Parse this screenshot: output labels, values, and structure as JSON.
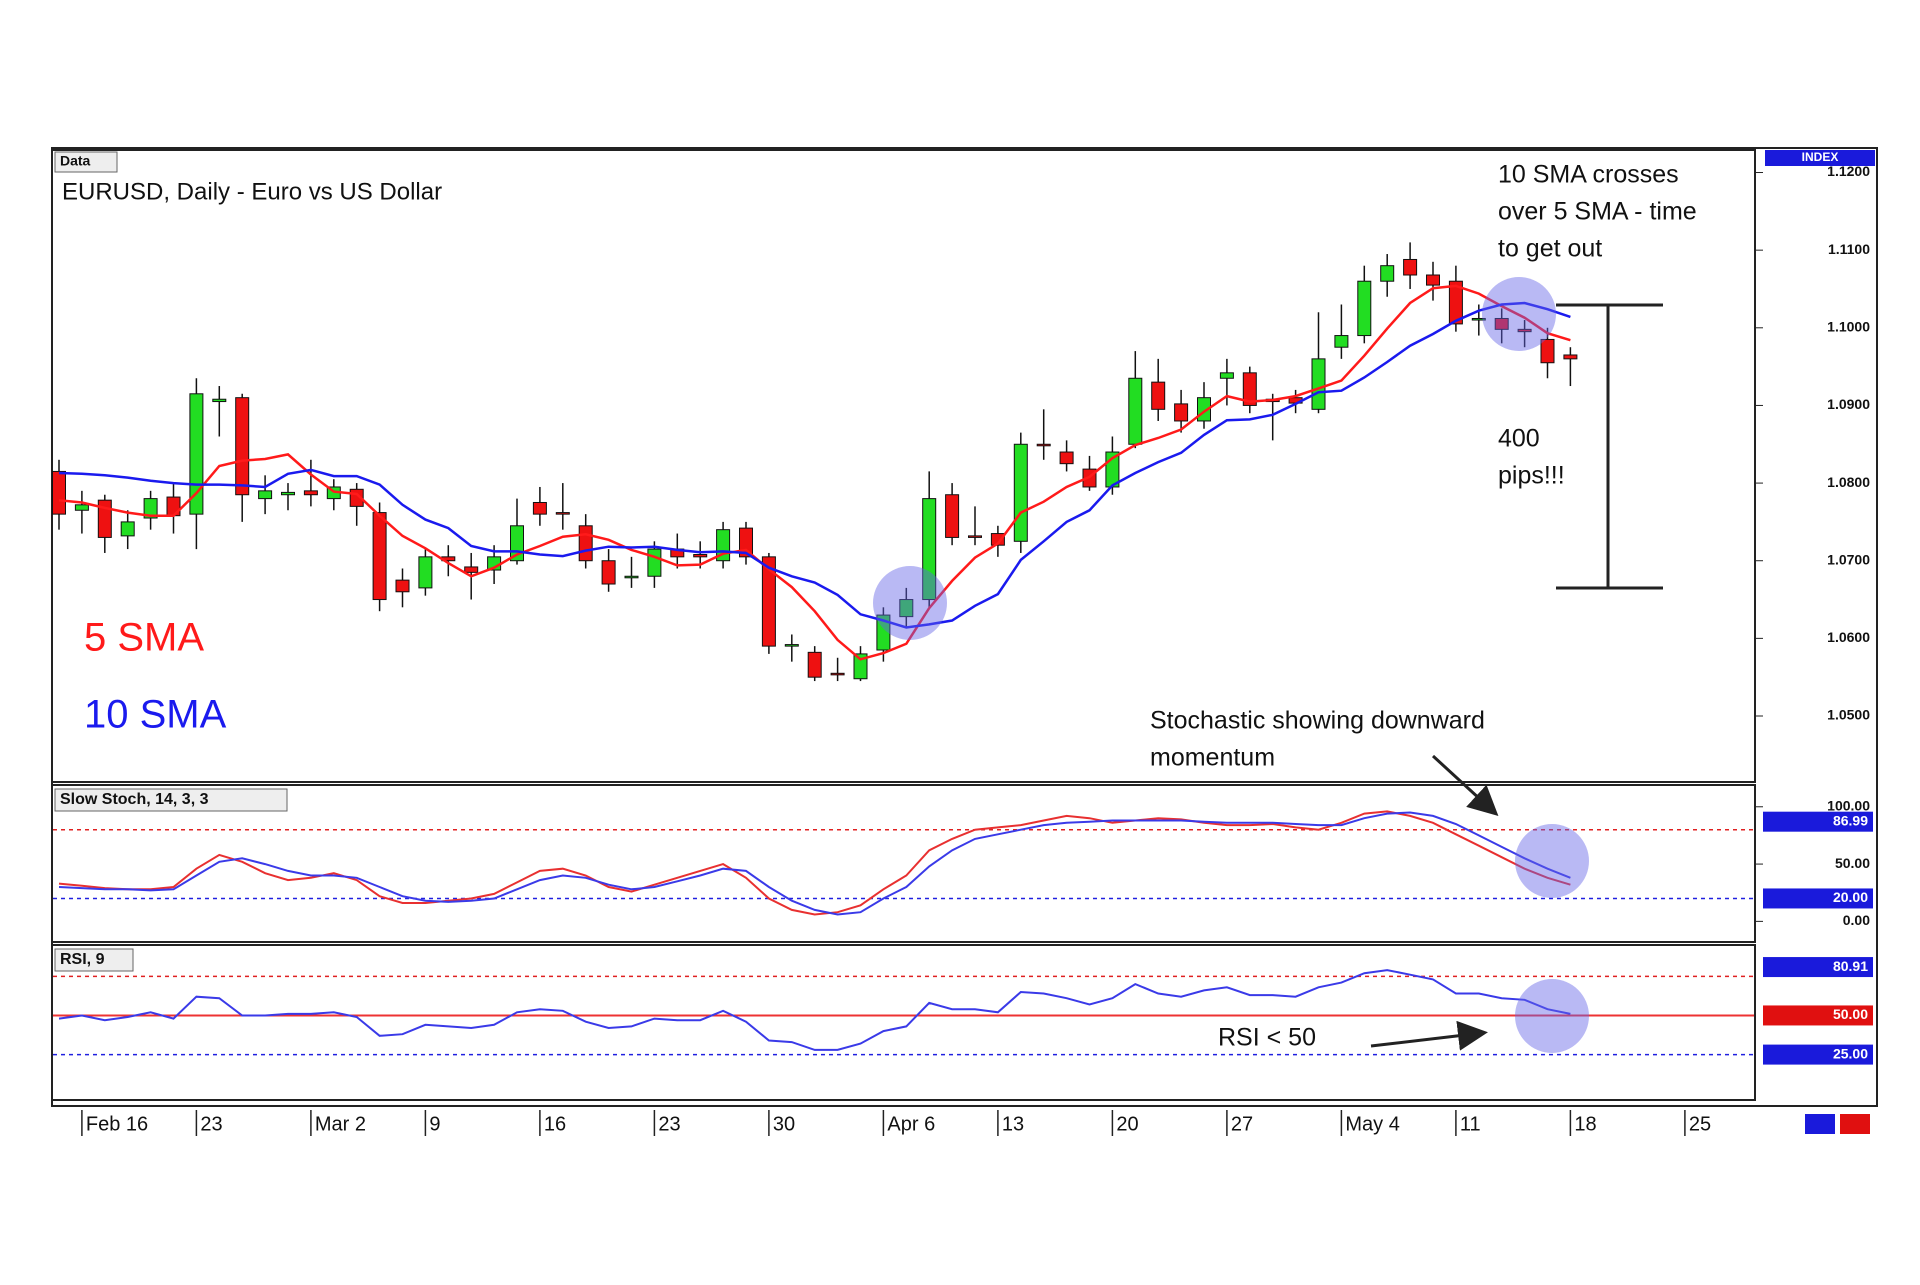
{
  "chart_data": {
    "type": "candlestick",
    "header_label": "Data",
    "title": "EURUSD, Daily - Euro vs US Dollar",
    "scale_label": "INDEX",
    "categories": [
      null,
      "Feb 16",
      null,
      null,
      null,
      null,
      "23",
      null,
      null,
      null,
      null,
      "Mar 2",
      null,
      null,
      null,
      null,
      "9",
      null,
      null,
      null,
      null,
      "16",
      null,
      null,
      null,
      null,
      "23",
      null,
      null,
      null,
      null,
      "30",
      null,
      null,
      null,
      null,
      "Apr 6",
      null,
      null,
      null,
      null,
      "13",
      null,
      null,
      null,
      null,
      "20",
      null,
      null,
      null,
      null,
      "27",
      null,
      null,
      null,
      null,
      "May 4",
      null,
      null,
      null,
      null,
      "11",
      null,
      null,
      null,
      null,
      "18",
      null,
      null,
      null,
      null,
      "25"
    ],
    "open": [
      1.0815,
      1.0765,
      1.0778,
      1.0732,
      1.0755,
      1.0782,
      1.076,
      1.0905,
      1.091,
      1.078,
      1.0785,
      1.079,
      1.078,
      1.0792,
      1.0762,
      1.0675,
      1.0665,
      1.0705,
      1.0692,
      1.0688,
      1.07,
      1.0775,
      1.0762,
      1.0745,
      1.07,
      1.0678,
      1.068,
      1.0715,
      1.0708,
      1.07,
      1.0742,
      1.0705,
      1.059,
      1.0582,
      1.0555,
      1.0548,
      1.0585,
      1.0628,
      1.065,
      1.0785,
      1.0732,
      1.0735,
      1.0725,
      1.085,
      1.084,
      1.0818,
      1.0795,
      1.085,
      1.093,
      1.0902,
      1.088,
      1.0935,
      1.0942,
      1.0908,
      1.091,
      1.0895,
      1.0975,
      1.099,
      1.106,
      1.1088,
      1.1068,
      1.106,
      1.101,
      1.1012,
      1.0998,
      1.0985,
      1.0965,
      null,
      null,
      null,
      null,
      null
    ],
    "high": [
      1.083,
      1.079,
      1.0785,
      1.0765,
      1.079,
      1.08,
      1.0935,
      1.0925,
      1.0915,
      1.081,
      1.08,
      1.083,
      1.0805,
      1.08,
      1.0775,
      1.069,
      1.0715,
      1.072,
      1.071,
      1.072,
      1.078,
      1.0795,
      1.08,
      1.076,
      1.0715,
      1.0705,
      1.0725,
      1.0735,
      1.0725,
      1.075,
      1.075,
      1.071,
      1.0605,
      1.059,
      1.0575,
      1.059,
      1.064,
      1.0665,
      1.0815,
      1.08,
      1.077,
      1.0745,
      1.0865,
      1.0895,
      1.0855,
      1.0835,
      1.086,
      1.097,
      1.096,
      1.092,
      1.093,
      1.096,
      1.095,
      1.0915,
      1.092,
      1.102,
      1.103,
      1.108,
      1.1095,
      1.111,
      1.1085,
      1.108,
      1.103,
      1.1025,
      1.101,
      1.1,
      1.0975,
      null,
      null,
      null,
      null,
      null
    ],
    "low": [
      1.074,
      1.0735,
      1.071,
      1.0715,
      1.074,
      1.0735,
      1.0715,
      1.086,
      1.075,
      1.076,
      1.0765,
      1.077,
      1.0765,
      1.0745,
      1.0635,
      1.064,
      1.0655,
      1.068,
      1.065,
      1.067,
      1.0695,
      1.0745,
      1.074,
      1.069,
      1.066,
      1.0665,
      1.0665,
      1.069,
      1.069,
      1.069,
      1.0695,
      1.058,
      1.057,
      1.0545,
      1.0545,
      1.0545,
      1.057,
      1.0615,
      1.064,
      1.072,
      1.072,
      1.0705,
      1.071,
      1.083,
      1.0815,
      1.079,
      1.0785,
      1.0845,
      1.088,
      1.0865,
      1.087,
      1.09,
      1.089,
      1.0855,
      1.089,
      1.089,
      1.096,
      1.098,
      1.104,
      1.105,
      1.1035,
      1.0995,
      1.099,
      1.098,
      1.0975,
      1.0935,
      1.0925,
      null,
      null,
      null,
      null,
      null
    ],
    "close": [
      1.076,
      1.0772,
      1.073,
      1.075,
      1.078,
      1.0758,
      1.0915,
      1.0908,
      1.0785,
      1.079,
      1.0788,
      1.0785,
      1.0795,
      1.077,
      1.065,
      1.066,
      1.0705,
      1.07,
      1.0685,
      1.0705,
      1.0745,
      1.076,
      1.076,
      1.07,
      1.067,
      1.068,
      1.0715,
      1.0705,
      1.0705,
      1.074,
      1.0705,
      1.059,
      1.0592,
      1.055,
      1.0553,
      1.058,
      1.063,
      1.065,
      1.078,
      1.073,
      1.073,
      1.072,
      1.085,
      1.0848,
      1.0825,
      1.0795,
      1.084,
      1.0935,
      1.0895,
      1.088,
      1.091,
      1.0942,
      1.09,
      1.0905,
      1.0903,
      1.096,
      1.099,
      1.106,
      1.108,
      1.1068,
      1.1055,
      1.1005,
      1.1012,
      1.0998,
      1.0995,
      1.0955,
      1.096,
      null,
      null,
      null,
      null,
      null
    ],
    "up_color": "#22dd22",
    "down_color": "#ee1111",
    "series": [
      {
        "name": "5 SMA",
        "color": "#ff1a1a",
        "values": [
          1.0778,
          1.0775,
          1.0768,
          1.0762,
          1.0758,
          1.0758,
          1.0787,
          1.0822,
          1.0829,
          1.0831,
          1.0837,
          1.0811,
          1.0789,
          1.0786,
          1.0758,
          1.0732,
          1.0716,
          1.0697,
          1.068,
          1.0691,
          1.0708,
          1.0719,
          1.0731,
          1.0734,
          1.0727,
          1.0714,
          1.0705,
          1.0694,
          1.0695,
          1.0709,
          1.0714,
          1.0689,
          1.0666,
          1.0635,
          1.0598,
          1.0573,
          1.0581,
          1.0593,
          1.0639,
          1.0674,
          1.0704,
          1.0722,
          1.0762,
          1.0776,
          1.0795,
          1.0808,
          1.0832,
          1.0849,
          1.0858,
          1.0869,
          1.0892,
          1.0912,
          1.0905,
          1.0907,
          1.0912,
          1.0922,
          1.0932,
          1.0964,
          1.0999,
          1.1032,
          1.1051,
          1.1054,
          1.1044,
          1.1028,
          1.1013,
          1.0993,
          1.0984,
          null,
          null,
          null,
          null,
          null
        ]
      },
      {
        "name": "10 SMA",
        "color": "#1a1aee",
        "values": [
          1.0813,
          1.0812,
          1.081,
          1.0807,
          1.0803,
          1.08,
          1.0798,
          1.0798,
          1.0797,
          1.0795,
          1.0812,
          1.0817,
          1.0809,
          1.0809,
          1.0798,
          1.0772,
          1.0753,
          1.0742,
          1.0719,
          1.0712,
          1.0712,
          1.0708,
          1.0706,
          1.0713,
          1.0718,
          1.0717,
          1.0718,
          1.0714,
          1.0711,
          1.0712,
          1.071,
          1.0691,
          1.068,
          1.0672,
          1.0656,
          1.0631,
          1.0623,
          1.0614,
          1.0618,
          1.0623,
          1.0642,
          1.0657,
          1.0701,
          1.0725,
          1.075,
          1.0765,
          1.0797,
          1.0813,
          1.0827,
          1.0839,
          1.0862,
          1.0881,
          1.0882,
          1.0888,
          1.0902,
          1.0917,
          1.0919,
          1.0936,
          1.0956,
          1.0977,
          1.0992,
          1.1009,
          1.1022,
          1.103,
          1.1032,
          1.1024,
          1.1014,
          null,
          null,
          null,
          null,
          null
        ]
      }
    ],
    "ylim": [
      1.0415,
      1.1229
    ],
    "yticks": [
      {
        "value": 1.05,
        "label": "1.0500"
      },
      {
        "value": 1.06,
        "label": "1.0600"
      },
      {
        "value": 1.07,
        "label": "1.0700"
      },
      {
        "value": 1.08,
        "label": "1.0800"
      },
      {
        "value": 1.09,
        "label": "1.0900"
      },
      {
        "value": 1.1,
        "label": "1.1000"
      },
      {
        "value": 1.11,
        "label": "1.1100"
      },
      {
        "value": 1.12,
        "label": "1.1200"
      }
    ],
    "annotations": {
      "cross_note": [
        "10 SMA crosses",
        "over 5 SMA - time",
        "to get out"
      ],
      "pips_note": [
        "400",
        "pips!!!"
      ],
      "stoch_note": [
        "Stochastic showing downward",
        "momentum"
      ],
      "rsi_note": "RSI < 50"
    },
    "panels": [
      {
        "type": "line",
        "title": "Slow Stoch, 14, 3, 3",
        "ylim": [
          -18,
          119
        ],
        "yticks": [
          {
            "value": 0,
            "label": "0.00"
          },
          {
            "value": 50,
            "label": "50.00"
          },
          {
            "value": 100,
            "label": "100.00"
          }
        ],
        "levels": [
          {
            "value": 80,
            "color": "#e02020",
            "style": "dashed"
          },
          {
            "value": 20,
            "color": "#2020e0",
            "style": "dashed"
          }
        ],
        "badges": [
          {
            "value": 86.99,
            "label": "86.99",
            "color": "#1a1adb"
          },
          {
            "value": 20,
            "label": "20.00",
            "color": "#1a1adb"
          }
        ],
        "series": [
          {
            "color": "#e83030",
            "values": [
              33,
              31,
              29,
              28,
              28,
              30,
              46,
              58,
              52,
              42,
              36,
              38,
              42,
              36,
              22,
              16,
              16,
              18,
              20,
              24,
              34,
              44,
              46,
              40,
              30,
              26,
              32,
              38,
              44,
              50,
              38,
              20,
              10,
              6,
              8,
              14,
              28,
              40,
              62,
              72,
              80,
              82,
              84,
              88,
              92,
              90,
              86,
              88,
              90,
              89,
              86,
              84,
              84,
              85,
              82,
              80,
              86,
              94,
              96,
              92,
              86,
              76,
              66,
              56,
              46,
              38,
              32,
              null,
              null,
              null,
              null,
              null
            ]
          },
          {
            "color": "#3a3ae8",
            "values": [
              30,
              29,
              28,
              28,
              27,
              28,
              40,
              52,
              55,
              50,
              44,
              40,
              40,
              38,
              30,
              22,
              18,
              17,
              18,
              20,
              28,
              36,
              40,
              38,
              32,
              28,
              30,
              35,
              40,
              46,
              44,
              30,
              18,
              10,
              6,
              8,
              20,
              30,
              48,
              62,
              72,
              76,
              80,
              84,
              86,
              87,
              88,
              88,
              88,
              88,
              87,
              86,
              86,
              86,
              85,
              84,
              84,
              90,
              94,
              95,
              92,
              85,
              75,
              65,
              55,
              46,
              38,
              null,
              null,
              null,
              null,
              null
            ]
          }
        ]
      },
      {
        "type": "line",
        "title": "RSI, 9",
        "ylim": [
          -4,
          95
        ],
        "levels": [
          {
            "value": 75,
            "color": "#e02020",
            "style": "dashed"
          },
          {
            "value": 50,
            "color": "#ee3333",
            "style": "solid"
          },
          {
            "value": 25,
            "color": "#2020e0",
            "style": "dashed"
          }
        ],
        "badges": [
          {
            "value": 80.91,
            "label": "80.91",
            "color": "#1a1adb"
          },
          {
            "value": 50,
            "label": "50.00",
            "color": "#e01010"
          },
          {
            "value": 25,
            "label": "25.00",
            "color": "#1a1adb"
          }
        ],
        "series": [
          {
            "color": "#3a3ae8",
            "values": [
              48,
              50,
              47,
              49,
              52,
              48,
              62,
              61,
              50,
              50,
              51,
              51,
              52,
              49,
              37,
              38,
              44,
              43,
              42,
              44,
              52,
              54,
              53,
              46,
              42,
              43,
              48,
              47,
              47,
              53,
              46,
              34,
              33,
              28,
              28,
              32,
              40,
              43,
              58,
              54,
              54,
              52,
              65,
              64,
              61,
              57,
              61,
              70,
              64,
              62,
              66,
              68,
              63,
              63,
              62,
              68,
              71,
              77,
              79,
              76,
              73,
              64,
              64,
              61,
              60,
              54,
              51,
              null,
              null,
              null,
              null,
              null
            ]
          }
        ]
      }
    ]
  }
}
